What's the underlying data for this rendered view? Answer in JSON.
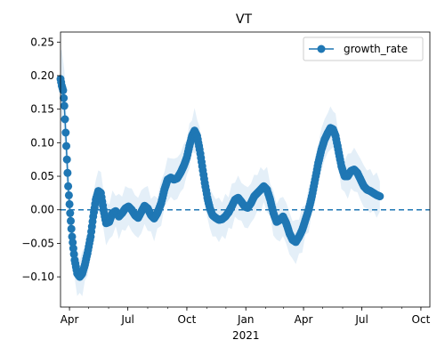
{
  "chart_data": {
    "type": "line",
    "title": "VT",
    "xlabel": "",
    "ylabel": "",
    "x_range": [
      "2020-03-18",
      "2021-10-15"
    ],
    "ylim": [
      -0.145,
      0.265
    ],
    "y_ticks": [
      -0.1,
      -0.05,
      0.0,
      0.05,
      0.1,
      0.15,
      0.2,
      0.25
    ],
    "y_tick_labels": [
      "−0.10",
      "−0.05",
      "0.00",
      "0.05",
      "0.10",
      "0.15",
      "0.20",
      "0.25"
    ],
    "x_ticks": [
      {
        "date": "2020-04-01",
        "label": "Apr"
      },
      {
        "date": "2020-07-01",
        "label": "Jul"
      },
      {
        "date": "2020-10-01",
        "label": "Oct"
      },
      {
        "date": "2021-01-01",
        "label": "Jan"
      },
      {
        "date": "2021-04-01",
        "label": "Apr"
      },
      {
        "date": "2021-07-01",
        "label": "Jul"
      },
      {
        "date": "2021-10-01",
        "label": "Oct"
      }
    ],
    "x_year_label": "2021",
    "legend": {
      "position": "top-right",
      "entries": [
        "growth_rate"
      ]
    },
    "reference_line": {
      "y": 0,
      "style": "dashed"
    },
    "colors": {
      "series": "#1f77b4",
      "band": "#dbe9f6"
    },
    "series": [
      {
        "name": "growth_rate",
        "points": [
          [
            "2020-03-18",
            0.195
          ],
          [
            "2020-03-20",
            0.185
          ],
          [
            "2020-03-22",
            0.178
          ],
          [
            "2020-03-24",
            0.155
          ],
          [
            "2020-03-26",
            0.115
          ],
          [
            "2020-03-28",
            0.075
          ],
          [
            "2020-03-30",
            0.035
          ],
          [
            "2020-04-02",
            -0.005
          ],
          [
            "2020-04-05",
            -0.04
          ],
          [
            "2020-04-09",
            -0.075
          ],
          [
            "2020-04-13",
            -0.095
          ],
          [
            "2020-04-17",
            -0.1
          ],
          [
            "2020-04-21",
            -0.095
          ],
          [
            "2020-04-25",
            -0.082
          ],
          [
            "2020-04-29",
            -0.065
          ],
          [
            "2020-05-04",
            -0.04
          ],
          [
            "2020-05-08",
            -0.01
          ],
          [
            "2020-05-12",
            0.015
          ],
          [
            "2020-05-16",
            0.028
          ],
          [
            "2020-05-20",
            0.025
          ],
          [
            "2020-05-24",
            0.0
          ],
          [
            "2020-05-28",
            -0.02
          ],
          [
            "2020-06-02",
            -0.018
          ],
          [
            "2020-06-07",
            -0.005
          ],
          [
            "2020-06-12",
            -0.002
          ],
          [
            "2020-06-17",
            -0.01
          ],
          [
            "2020-06-22",
            -0.005
          ],
          [
            "2020-06-27",
            0.002
          ],
          [
            "2020-07-02",
            0.005
          ],
          [
            "2020-07-07",
            0.0
          ],
          [
            "2020-07-12",
            -0.008
          ],
          [
            "2020-07-17",
            -0.012
          ],
          [
            "2020-07-22",
            -0.003
          ],
          [
            "2020-07-27",
            0.006
          ],
          [
            "2020-08-01",
            0.002
          ],
          [
            "2020-08-06",
            -0.008
          ],
          [
            "2020-08-11",
            -0.013
          ],
          [
            "2020-08-16",
            -0.005
          ],
          [
            "2020-08-22",
            0.01
          ],
          [
            "2020-08-27",
            0.03
          ],
          [
            "2020-09-01",
            0.045
          ],
          [
            "2020-09-06",
            0.048
          ],
          [
            "2020-09-11",
            0.045
          ],
          [
            "2020-09-16",
            0.047
          ],
          [
            "2020-09-21",
            0.055
          ],
          [
            "2020-09-26",
            0.065
          ],
          [
            "2020-10-01",
            0.078
          ],
          [
            "2020-10-05",
            0.095
          ],
          [
            "2020-10-09",
            0.11
          ],
          [
            "2020-10-13",
            0.118
          ],
          [
            "2020-10-17",
            0.11
          ],
          [
            "2020-10-21",
            0.09
          ],
          [
            "2020-10-25",
            0.065
          ],
          [
            "2020-10-29",
            0.04
          ],
          [
            "2020-11-02",
            0.018
          ],
          [
            "2020-11-06",
            0.002
          ],
          [
            "2020-11-10",
            -0.008
          ],
          [
            "2020-11-15",
            -0.012
          ],
          [
            "2020-11-20",
            -0.015
          ],
          [
            "2020-11-25",
            -0.014
          ],
          [
            "2020-11-30",
            -0.01
          ],
          [
            "2020-12-05",
            -0.004
          ],
          [
            "2020-12-10",
            0.005
          ],
          [
            "2020-12-15",
            0.015
          ],
          [
            "2020-12-20",
            0.018
          ],
          [
            "2020-12-25",
            0.012
          ],
          [
            "2020-12-30",
            0.005
          ],
          [
            "2021-01-04",
            0.003
          ],
          [
            "2021-01-09",
            0.01
          ],
          [
            "2021-01-14",
            0.02
          ],
          [
            "2021-01-19",
            0.025
          ],
          [
            "2021-01-24",
            0.03
          ],
          [
            "2021-01-29",
            0.035
          ],
          [
            "2021-02-03",
            0.03
          ],
          [
            "2021-02-08",
            0.015
          ],
          [
            "2021-02-13",
            -0.005
          ],
          [
            "2021-02-18",
            -0.018
          ],
          [
            "2021-02-23",
            -0.015
          ],
          [
            "2021-02-28",
            -0.01
          ],
          [
            "2021-03-05",
            -0.02
          ],
          [
            "2021-03-10",
            -0.035
          ],
          [
            "2021-03-15",
            -0.045
          ],
          [
            "2021-03-20",
            -0.048
          ],
          [
            "2021-03-25",
            -0.04
          ],
          [
            "2021-03-30",
            -0.03
          ],
          [
            "2021-04-04",
            -0.015
          ],
          [
            "2021-04-09",
            0.0
          ],
          [
            "2021-04-14",
            0.02
          ],
          [
            "2021-04-19",
            0.045
          ],
          [
            "2021-04-24",
            0.07
          ],
          [
            "2021-04-29",
            0.09
          ],
          [
            "2021-05-04",
            0.105
          ],
          [
            "2021-05-09",
            0.115
          ],
          [
            "2021-05-13",
            0.122
          ],
          [
            "2021-05-17",
            0.12
          ],
          [
            "2021-05-21",
            0.11
          ],
          [
            "2021-05-25",
            0.09
          ],
          [
            "2021-05-30",
            0.065
          ],
          [
            "2021-06-04",
            0.05
          ],
          [
            "2021-06-09",
            0.05
          ],
          [
            "2021-06-14",
            0.058
          ],
          [
            "2021-06-19",
            0.06
          ],
          [
            "2021-06-24",
            0.055
          ],
          [
            "2021-06-29",
            0.045
          ],
          [
            "2021-07-04",
            0.035
          ],
          [
            "2021-07-09",
            0.03
          ],
          [
            "2021-07-14",
            0.028
          ],
          [
            "2021-07-19",
            0.025
          ],
          [
            "2021-07-24",
            0.022
          ],
          [
            "2021-07-29",
            0.02
          ]
        ]
      }
    ]
  }
}
